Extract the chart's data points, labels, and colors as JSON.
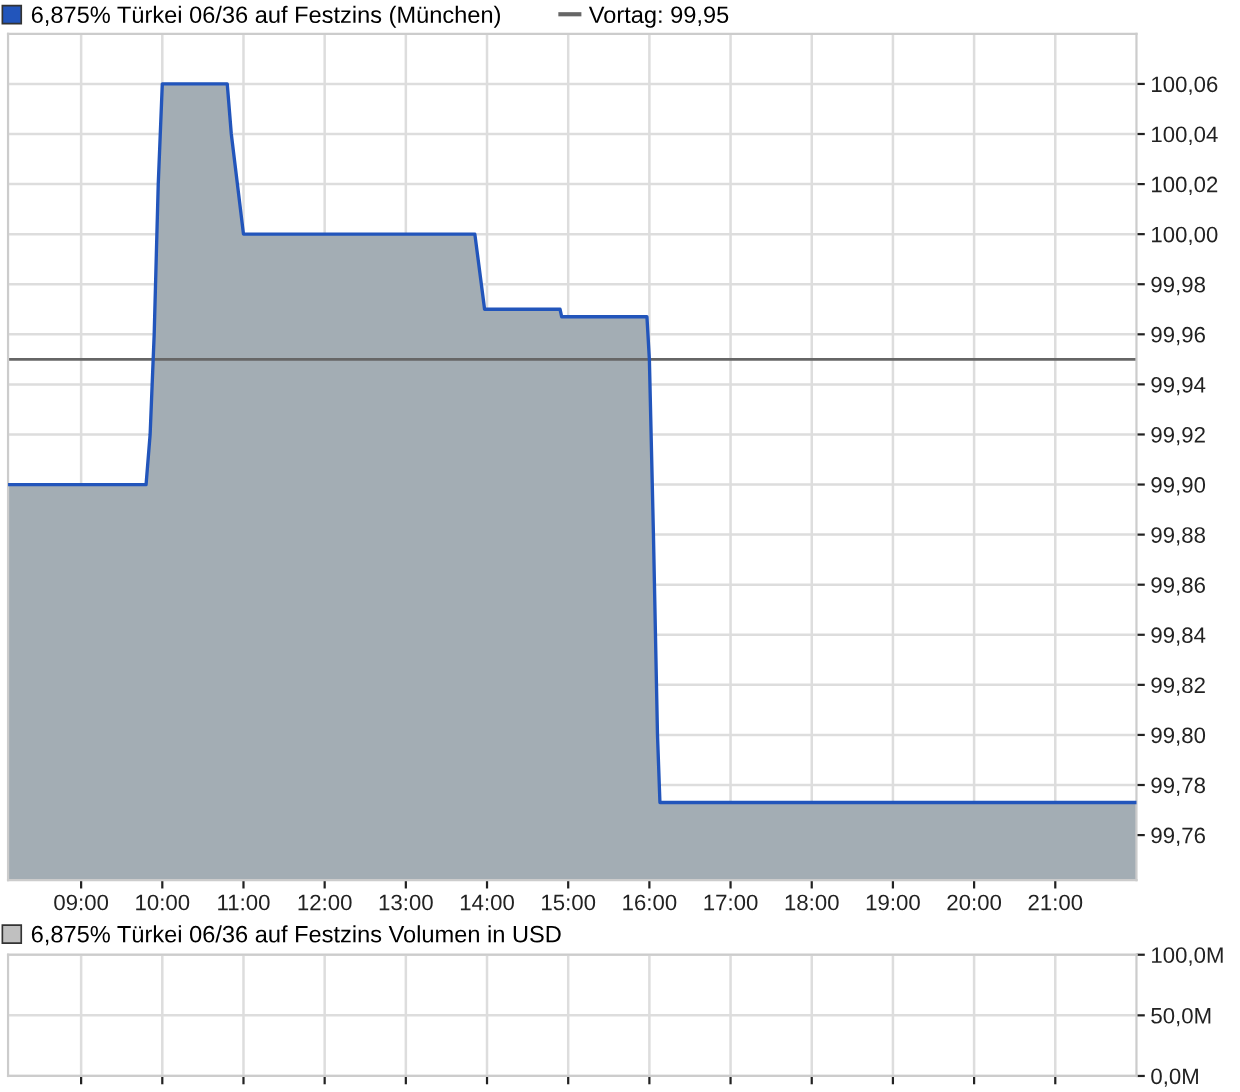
{
  "chart_data": [
    {
      "type": "area",
      "legend": "top",
      "x": [
        8.1,
        9.8,
        9.85,
        9.9,
        9.95,
        10.0,
        10.8,
        10.85,
        11.0,
        13.85,
        13.97,
        14.9,
        14.92,
        15.97,
        16.0,
        16.05,
        16.1,
        16.13,
        22.0
      ],
      "series": [
        {
          "name": "6,875% Türkei 06/36 auf Festzins (München)",
          "color": "#2255bb",
          "values": [
            99.9,
            99.9,
            99.92,
            99.96,
            100.02,
            100.06,
            100.06,
            100.04,
            100.0,
            100.0,
            99.97,
            99.97,
            99.967,
            99.967,
            99.95,
            99.88,
            99.8,
            99.773,
            99.773
          ]
        }
      ],
      "xlim": [
        8.1,
        22.0
      ],
      "xticks": [
        {
          "value": 9,
          "label": "09:00"
        },
        {
          "value": 10,
          "label": "10:00"
        },
        {
          "value": 11,
          "label": "11:00"
        },
        {
          "value": 12,
          "label": "12:00"
        },
        {
          "value": 13,
          "label": "13:00"
        },
        {
          "value": 14,
          "label": "14:00"
        },
        {
          "value": 15,
          "label": "15:00"
        },
        {
          "value": 16,
          "label": "16:00"
        },
        {
          "value": 17,
          "label": "17:00"
        },
        {
          "value": 18,
          "label": "18:00"
        },
        {
          "value": 19,
          "label": "19:00"
        },
        {
          "value": 20,
          "label": "20:00"
        },
        {
          "value": 21,
          "label": "21:00"
        }
      ],
      "ylim": [
        99.742,
        100.08
      ],
      "yticks": [
        {
          "value": 99.76,
          "label": "99,76"
        },
        {
          "value": 99.78,
          "label": "99,78"
        },
        {
          "value": 99.8,
          "label": "99,80"
        },
        {
          "value": 99.82,
          "label": "99,82"
        },
        {
          "value": 99.84,
          "label": "99,84"
        },
        {
          "value": 99.86,
          "label": "99,86"
        },
        {
          "value": 99.88,
          "label": "99,88"
        },
        {
          "value": 99.9,
          "label": "99,90"
        },
        {
          "value": 99.92,
          "label": "99,92"
        },
        {
          "value": 99.94,
          "label": "99,94"
        },
        {
          "value": 99.96,
          "label": "99,96"
        },
        {
          "value": 99.98,
          "label": "99,98"
        },
        {
          "value": 100.0,
          "label": "100,00"
        },
        {
          "value": 100.02,
          "label": "100,02"
        },
        {
          "value": 100.04,
          "label": "100,04"
        },
        {
          "value": 100.06,
          "label": "100,06"
        }
      ],
      "ref_lines": [
        {
          "axis": "y",
          "value": 99.95,
          "label": "Vortag: 99,95",
          "color": "#666666"
        }
      ],
      "grid": true
    },
    {
      "type": "bar",
      "legend": "top",
      "tick_labels": "y",
      "series": [
        {
          "name": "6,875% Türkei 06/36 auf Festzins Volumen in USD",
          "color": "#c0c0c0"
        }
      ],
      "ylim": [
        0,
        100000000
      ],
      "yticks": [
        {
          "value": 0,
          "label": "0,0M"
        },
        {
          "value": 50000000,
          "label": "50,0M"
        },
        {
          "value": 100000000,
          "label": "100,0M"
        }
      ],
      "grid": true
    }
  ]
}
